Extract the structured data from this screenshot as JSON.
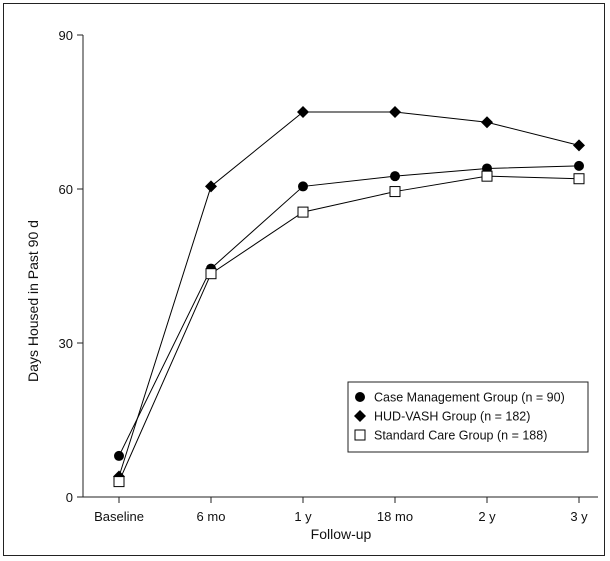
{
  "chart_data": {
    "type": "line",
    "categories": [
      "Baseline",
      "6 mo",
      "1 y",
      "18 mo",
      "2 y",
      "3 y"
    ],
    "series": [
      {
        "name": "Case Management Group (n = 90)",
        "marker": "circle-filled",
        "values": [
          8,
          44.5,
          60.5,
          62.5,
          64,
          64.5
        ]
      },
      {
        "name": "HUD-VASH Group (n = 182)",
        "marker": "diamond-filled",
        "values": [
          4,
          60.5,
          75,
          75,
          73,
          68.5
        ]
      },
      {
        "name": "Standard Care Group (n = 188)",
        "marker": "square-open",
        "values": [
          3,
          43.5,
          55.5,
          59.5,
          62.5,
          62
        ]
      }
    ],
    "xlabel": "Follow-up",
    "ylabel": "Days Housed in Past 90 d",
    "ylim": [
      0,
      90
    ],
    "yticks": [
      0,
      30,
      60,
      90
    ],
    "legend_position": "lower-right",
    "grid": false
  }
}
